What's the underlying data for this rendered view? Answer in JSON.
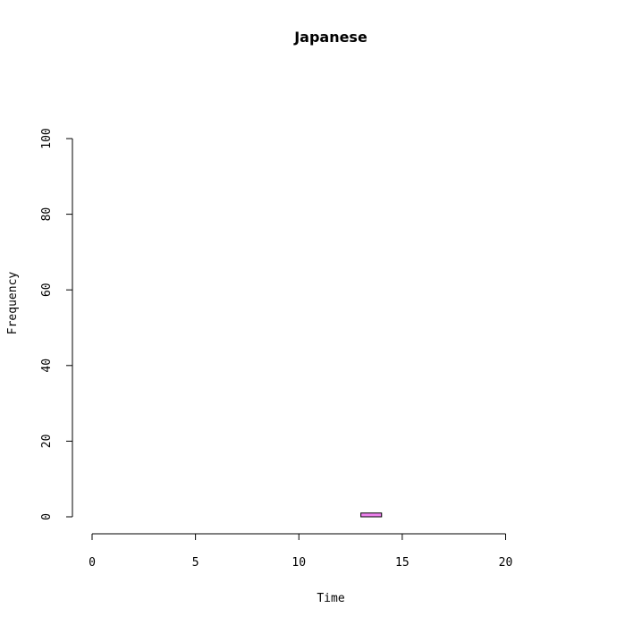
{
  "chart_data": {
    "type": "bar",
    "title": "Japanese",
    "xlabel": "Time",
    "ylabel": "Frequency",
    "xlim": [
      0,
      24
    ],
    "ylim": [
      0,
      100
    ],
    "x_ticks": [
      0,
      5,
      10,
      15,
      20
    ],
    "y_ticks": [
      0,
      20,
      40,
      60,
      80,
      100
    ],
    "bin_width": 1,
    "bins": [
      {
        "x_start": 0,
        "x_end": 1,
        "value": 0
      },
      {
        "x_start": 1,
        "x_end": 2,
        "value": 0
      },
      {
        "x_start": 2,
        "x_end": 3,
        "value": 0
      },
      {
        "x_start": 3,
        "x_end": 4,
        "value": 0
      },
      {
        "x_start": 4,
        "x_end": 5,
        "value": 0
      },
      {
        "x_start": 5,
        "x_end": 6,
        "value": 0
      },
      {
        "x_start": 6,
        "x_end": 7,
        "value": 0
      },
      {
        "x_start": 7,
        "x_end": 8,
        "value": 0
      },
      {
        "x_start": 8,
        "x_end": 9,
        "value": 0
      },
      {
        "x_start": 9,
        "x_end": 10,
        "value": 0
      },
      {
        "x_start": 10,
        "x_end": 11,
        "value": 0
      },
      {
        "x_start": 11,
        "x_end": 12,
        "value": 0
      },
      {
        "x_start": 12,
        "x_end": 13,
        "value": 0
      },
      {
        "x_start": 13,
        "x_end": 14,
        "value": 1
      },
      {
        "x_start": 14,
        "x_end": 15,
        "value": 0
      },
      {
        "x_start": 15,
        "x_end": 16,
        "value": 0
      },
      {
        "x_start": 16,
        "x_end": 17,
        "value": 0
      },
      {
        "x_start": 17,
        "x_end": 18,
        "value": 0
      },
      {
        "x_start": 18,
        "x_end": 19,
        "value": 0
      },
      {
        "x_start": 19,
        "x_end": 20,
        "value": 0
      },
      {
        "x_start": 20,
        "x_end": 21,
        "value": 0
      },
      {
        "x_start": 21,
        "x_end": 22,
        "value": 0
      },
      {
        "x_start": 22,
        "x_end": 23,
        "value": 0
      },
      {
        "x_start": 23,
        "x_end": 24,
        "value": 0
      }
    ],
    "bar_color": "#ee82ee",
    "grid": false,
    "legend": "none"
  }
}
